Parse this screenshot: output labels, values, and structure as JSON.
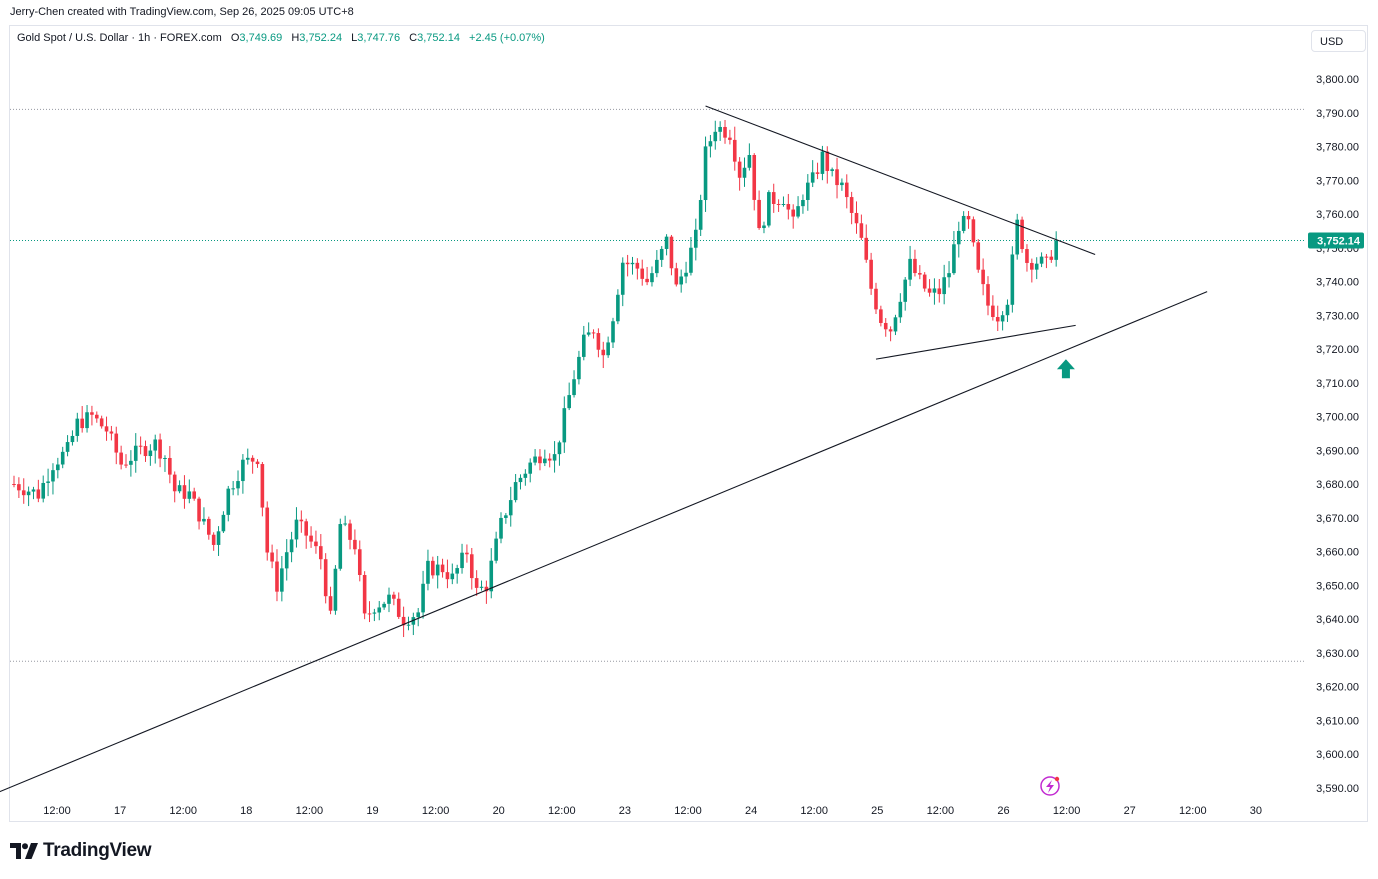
{
  "header": {
    "author_line": "Jerry-Chen created with TradingView.com, Sep 26, 2025 09:05 UTC+8"
  },
  "legend": {
    "symbol": "Gold Spot / U.S. Dollar · 1h · FOREX.com",
    "open_label": "O",
    "open": "3,749.69",
    "high_label": "H",
    "high": "3,752.24",
    "low_label": "L",
    "low": "3,747.76",
    "close_label": "C",
    "close": "3,752.14",
    "change": "+2.45 (+0.07%)"
  },
  "currency": "USD",
  "brand": {
    "name": "TradingView"
  },
  "colors": {
    "up": "#089981",
    "down": "#f23645",
    "price_label_bg": "#089981",
    "dotted_line": "#089981"
  },
  "chart_data": {
    "type": "candlestick",
    "price_label": "3,752.14",
    "current_price": 3752.14,
    "ylim": [
      3585,
      3810
    ],
    "y_ticks": [
      "3,800.00",
      "3,790.00",
      "3,780.00",
      "3,770.00",
      "3,760.00",
      "3,750.00",
      "3,740.00",
      "3,730.00",
      "3,720.00",
      "3,710.00",
      "3,700.00",
      "3,690.00",
      "3,680.00",
      "3,670.00",
      "3,660.00",
      "3,650.00",
      "3,640.00",
      "3,630.00",
      "3,620.00",
      "3,610.00",
      "3,600.00",
      "3,590.00"
    ],
    "x_ticks": [
      "12:00",
      "17",
      "12:00",
      "18",
      "12:00",
      "19",
      "12:00",
      "20",
      "12:00",
      "23",
      "12:00",
      "24",
      "12:00",
      "25",
      "12:00",
      "26",
      "12:00",
      "27",
      "12:00",
      "30"
    ],
    "horizontal_levels": [
      3791,
      3752.14,
      3627.5
    ],
    "path_points": [
      {
        "i": 0,
        "p": 3680
      },
      {
        "i": 5,
        "p": 3677
      },
      {
        "i": 8,
        "p": 3686
      },
      {
        "i": 11,
        "p": 3690
      },
      {
        "i": 13,
        "p": 3698
      },
      {
        "i": 16,
        "p": 3700
      },
      {
        "i": 19,
        "p": 3696
      },
      {
        "i": 22,
        "p": 3686
      },
      {
        "i": 26,
        "p": 3690
      },
      {
        "i": 29,
        "p": 3692
      },
      {
        "i": 31,
        "p": 3688
      },
      {
        "i": 33,
        "p": 3678
      },
      {
        "i": 36,
        "p": 3677
      },
      {
        "i": 39,
        "p": 3668
      },
      {
        "i": 41,
        "p": 3662
      },
      {
        "i": 44,
        "p": 3678
      },
      {
        "i": 47,
        "p": 3686
      },
      {
        "i": 50,
        "p": 3688
      },
      {
        "i": 52,
        "p": 3660
      },
      {
        "i": 54,
        "p": 3650
      },
      {
        "i": 56,
        "p": 3660
      },
      {
        "i": 58,
        "p": 3668
      },
      {
        "i": 60,
        "p": 3665
      },
      {
        "i": 63,
        "p": 3658
      },
      {
        "i": 65,
        "p": 3640
      },
      {
        "i": 67,
        "p": 3668
      },
      {
        "i": 70,
        "p": 3662
      },
      {
        "i": 72,
        "p": 3640
      },
      {
        "i": 74,
        "p": 3644
      },
      {
        "i": 77,
        "p": 3646
      },
      {
        "i": 80,
        "p": 3640
      },
      {
        "i": 83,
        "p": 3642
      },
      {
        "i": 85,
        "p": 3655
      },
      {
        "i": 88,
        "p": 3655
      },
      {
        "i": 90,
        "p": 3652
      },
      {
        "i": 93,
        "p": 3660
      },
      {
        "i": 95,
        "p": 3648
      },
      {
        "i": 97,
        "p": 3650
      },
      {
        "i": 100,
        "p": 3668
      },
      {
        "i": 103,
        "p": 3680
      },
      {
        "i": 106,
        "p": 3686
      },
      {
        "i": 109,
        "p": 3690
      },
      {
        "i": 111,
        "p": 3688
      },
      {
        "i": 113,
        "p": 3700
      },
      {
        "i": 115,
        "p": 3712
      },
      {
        "i": 117,
        "p": 3722
      },
      {
        "i": 119,
        "p": 3726
      },
      {
        "i": 121,
        "p": 3718
      },
      {
        "i": 123,
        "p": 3730
      },
      {
        "i": 125,
        "p": 3746
      },
      {
        "i": 128,
        "p": 3744
      },
      {
        "i": 130,
        "p": 3740
      },
      {
        "i": 132,
        "p": 3745
      },
      {
        "i": 134,
        "p": 3752
      },
      {
        "i": 136,
        "p": 3738
      },
      {
        "i": 138,
        "p": 3745
      },
      {
        "i": 140,
        "p": 3753
      },
      {
        "i": 142,
        "p": 3778
      },
      {
        "i": 144,
        "p": 3786
      },
      {
        "i": 147,
        "p": 3784
      },
      {
        "i": 149,
        "p": 3772
      },
      {
        "i": 151,
        "p": 3778
      },
      {
        "i": 153,
        "p": 3754
      },
      {
        "i": 155,
        "p": 3764
      },
      {
        "i": 158,
        "p": 3765
      },
      {
        "i": 160,
        "p": 3757
      },
      {
        "i": 162,
        "p": 3766
      },
      {
        "i": 164,
        "p": 3770
      },
      {
        "i": 166,
        "p": 3777
      },
      {
        "i": 168,
        "p": 3771
      },
      {
        "i": 170,
        "p": 3768
      },
      {
        "i": 172,
        "p": 3760
      },
      {
        "i": 174,
        "p": 3752
      },
      {
        "i": 176,
        "p": 3738
      },
      {
        "i": 178,
        "p": 3729
      },
      {
        "i": 180,
        "p": 3726
      },
      {
        "i": 182,
        "p": 3736
      },
      {
        "i": 184,
        "p": 3745
      },
      {
        "i": 186,
        "p": 3740
      },
      {
        "i": 188,
        "p": 3736
      },
      {
        "i": 190,
        "p": 3737
      },
      {
        "i": 192,
        "p": 3743
      },
      {
        "i": 194,
        "p": 3757
      },
      {
        "i": 196,
        "p": 3757
      },
      {
        "i": 198,
        "p": 3742
      },
      {
        "i": 200,
        "p": 3733
      },
      {
        "i": 202,
        "p": 3730
      },
      {
        "i": 204,
        "p": 3735
      },
      {
        "i": 206,
        "p": 3757
      },
      {
        "i": 208,
        "p": 3746
      },
      {
        "i": 210,
        "p": 3746
      },
      {
        "i": 212,
        "p": 3745
      },
      {
        "i": 214,
        "p": 3752.14
      }
    ],
    "trend_lines": [
      {
        "name": "descending-resistance-line",
        "from": {
          "i": 142,
          "p": 3792
        },
        "to": {
          "i": 222,
          "p": 3748
        }
      },
      {
        "name": "rising-triangle-support-line",
        "from": {
          "i": 177,
          "p": 3717
        },
        "to": {
          "i": 218,
          "p": 3727
        }
      },
      {
        "name": "long-term-ascending-support-line",
        "from": {
          "i": -6,
          "p": 3587
        },
        "to": {
          "i": 245,
          "p": 3737
        }
      }
    ],
    "arrow": {
      "direction": "up",
      "i": 216,
      "p": 3714
    }
  }
}
